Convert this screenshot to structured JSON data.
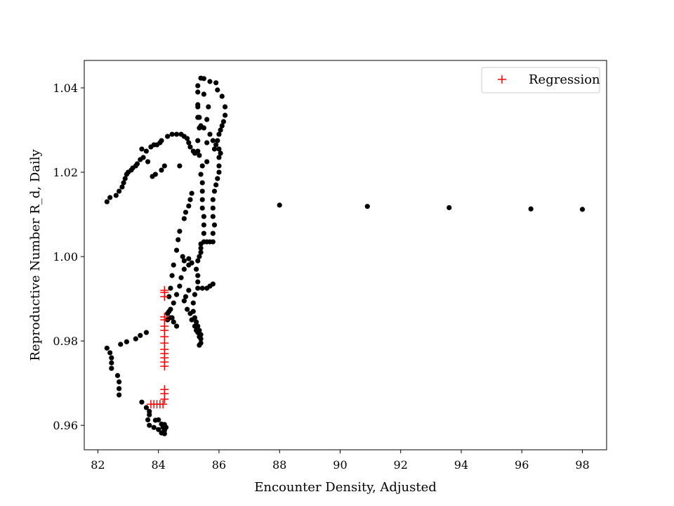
{
  "chart_data": {
    "type": "scatter",
    "title": "",
    "xlabel": "Encounter Density, Adjusted",
    "ylabel": "Reproductive Number R_d, Daily",
    "xlim": [
      81.55,
      98.8
    ],
    "ylim": [
      0.9542,
      1.0465
    ],
    "xticks": [
      82,
      84,
      86,
      88,
      90,
      92,
      94,
      96,
      98
    ],
    "xtick_labels": [
      "82",
      "84",
      "86",
      "88",
      "90",
      "92",
      "94",
      "96",
      "98"
    ],
    "yticks": [
      0.96,
      0.98,
      1.0,
      1.02,
      1.04
    ],
    "ytick_labels": [
      "0.96",
      "0.98",
      "1.00",
      "1.02",
      "1.04"
    ],
    "grid": false,
    "legend": {
      "position": "upper-right",
      "entries": [
        "Regression"
      ]
    },
    "series": [
      {
        "marker": "dot",
        "color": "#000000",
        "points": [
          [
            82.3,
            1.013
          ],
          [
            82.4,
            1.014
          ],
          [
            82.6,
            1.0145
          ],
          [
            82.7,
            1.0155
          ],
          [
            82.8,
            1.0165
          ],
          [
            82.85,
            1.0175
          ],
          [
            82.9,
            1.0185
          ],
          [
            82.95,
            1.0195
          ],
          [
            83.0,
            1.02
          ],
          [
            83.1,
            1.0205
          ],
          [
            83.15,
            1.021
          ],
          [
            83.25,
            1.0215
          ],
          [
            83.3,
            1.022
          ],
          [
            83.4,
            1.023
          ],
          [
            83.5,
            1.0235
          ],
          [
            83.45,
            1.0255
          ],
          [
            83.6,
            1.025
          ],
          [
            83.65,
            1.0225
          ],
          [
            83.75,
            1.026
          ],
          [
            83.85,
            1.0265
          ],
          [
            83.95,
            1.0265
          ],
          [
            84.05,
            1.027
          ],
          [
            84.1,
            1.0275
          ],
          [
            84.3,
            1.0285
          ],
          [
            84.45,
            1.029
          ],
          [
            84.6,
            1.029
          ],
          [
            84.75,
            1.029
          ],
          [
            84.85,
            1.0285
          ],
          [
            84.95,
            1.028
          ],
          [
            85.0,
            1.027
          ],
          [
            85.05,
            1.026
          ],
          [
            85.15,
            1.025
          ],
          [
            85.2,
            1.0245
          ],
          [
            84.7,
            1.0215
          ],
          [
            84.2,
            1.0215
          ],
          [
            84.1,
            1.0205
          ],
          [
            83.9,
            1.0195
          ],
          [
            83.8,
            1.019
          ],
          [
            85.3,
            1.025
          ],
          [
            85.3,
            1.0275
          ],
          [
            85.35,
            1.0305
          ],
          [
            85.3,
            1.033
          ],
          [
            85.3,
            1.036
          ],
          [
            85.3,
            1.039
          ],
          [
            85.3,
            1.0405
          ],
          [
            85.4,
            1.0423
          ],
          [
            85.5,
            1.0422
          ],
          [
            85.7,
            1.0415
          ],
          [
            85.9,
            1.0412
          ],
          [
            85.95,
            1.0395
          ],
          [
            86.1,
            1.038
          ],
          [
            86.2,
            1.0355
          ],
          [
            86.2,
            1.0335
          ],
          [
            86.15,
            1.032
          ],
          [
            86.1,
            1.031
          ],
          [
            86.05,
            1.03
          ],
          [
            86.0,
            1.029
          ],
          [
            85.95,
            1.0275
          ],
          [
            85.9,
            1.0265
          ],
          [
            85.85,
            1.0255
          ],
          [
            86.0,
            1.0255
          ],
          [
            86.05,
            1.0245
          ],
          [
            86.0,
            1.0235
          ],
          [
            86.0,
            1.0215
          ],
          [
            86.0,
            1.02
          ],
          [
            85.95,
            1.0185
          ],
          [
            85.9,
            1.017
          ],
          [
            85.85,
            1.0155
          ],
          [
            85.8,
            1.0135
          ],
          [
            85.8,
            1.0115
          ],
          [
            85.8,
            1.0095
          ],
          [
            85.85,
            1.0075
          ],
          [
            85.8,
            1.0055
          ],
          [
            85.8,
            1.0035
          ],
          [
            85.7,
            1.0035
          ],
          [
            85.6,
            1.0035
          ],
          [
            85.5,
            1.0035
          ],
          [
            85.4,
            1.003
          ],
          [
            85.4,
            1.002
          ],
          [
            85.4,
            1.001
          ],
          [
            85.35,
            1.0
          ],
          [
            85.3,
            0.999
          ],
          [
            85.5,
            1.0055
          ],
          [
            85.5,
            1.0075
          ],
          [
            85.5,
            1.0095
          ],
          [
            85.45,
            1.0115
          ],
          [
            85.45,
            1.0135
          ],
          [
            85.45,
            1.0155
          ],
          [
            85.45,
            1.0175
          ],
          [
            85.4,
            1.0195
          ],
          [
            85.45,
            1.0215
          ],
          [
            85.6,
            1.0225
          ],
          [
            85.35,
            1.024
          ],
          [
            85.6,
            1.027
          ],
          [
            85.8,
            1.0275
          ],
          [
            85.7,
            1.029
          ],
          [
            85.4,
            1.031
          ],
          [
            85.35,
            1.033
          ],
          [
            85.3,
            1.0355
          ],
          [
            85.5,
            1.0385
          ],
          [
            85.65,
            1.0355
          ],
          [
            85.6,
            1.0325
          ],
          [
            85.5,
            1.0305
          ],
          [
            85.0,
            0.998
          ],
          [
            84.85,
            0.997
          ],
          [
            84.75,
            0.995
          ],
          [
            84.7,
            0.993
          ],
          [
            84.6,
            0.991
          ],
          [
            84.5,
            0.989
          ],
          [
            84.4,
            0.9875
          ],
          [
            84.3,
            0.9865
          ],
          [
            84.3,
            0.985
          ],
          [
            84.4,
            0.9855
          ],
          [
            84.5,
            0.9845
          ],
          [
            84.6,
            0.9835
          ],
          [
            84.45,
            0.9855
          ],
          [
            84.35,
            0.987
          ],
          [
            84.35,
            0.9905
          ],
          [
            84.4,
            0.9925
          ],
          [
            84.45,
            0.9955
          ],
          [
            84.5,
            0.998
          ],
          [
            84.6,
            1.0015
          ],
          [
            84.65,
            1.004
          ],
          [
            84.7,
            1.006
          ],
          [
            84.85,
            1.009
          ],
          [
            84.9,
            1.0105
          ],
          [
            85.0,
            1.012
          ],
          [
            85.05,
            1.0135
          ],
          [
            85.1,
            1.015
          ],
          [
            85.0,
            0.992
          ],
          [
            84.9,
            0.9905
          ],
          [
            84.85,
            0.9895
          ],
          [
            84.95,
            0.9875
          ],
          [
            85.05,
            0.9865
          ],
          [
            85.1,
            0.985
          ],
          [
            85.2,
            0.9835
          ],
          [
            85.25,
            0.9825
          ],
          [
            85.3,
            0.982
          ],
          [
            85.35,
            0.981
          ],
          [
            85.4,
            0.9795
          ],
          [
            85.35,
            0.979
          ],
          [
            85.4,
            0.9805
          ],
          [
            85.4,
            0.9815
          ],
          [
            85.35,
            0.9825
          ],
          [
            85.3,
            0.9835
          ],
          [
            85.25,
            0.9845
          ],
          [
            85.2,
            0.9855
          ],
          [
            85.15,
            0.987
          ],
          [
            85.15,
            0.989
          ],
          [
            85.2,
            0.991
          ],
          [
            85.3,
            0.9925
          ],
          [
            85.45,
            0.9925
          ],
          [
            85.6,
            0.9925
          ],
          [
            85.7,
            0.993
          ],
          [
            85.8,
            0.9935
          ],
          [
            85.3,
            0.994
          ],
          [
            85.3,
            0.9955
          ],
          [
            85.25,
            0.997
          ],
          [
            85.1,
            0.9985
          ],
          [
            85.0,
            0.9995
          ],
          [
            84.85,
            0.999
          ],
          [
            84.8,
            1.0
          ],
          [
            83.6,
            0.982
          ],
          [
            83.4,
            0.9813
          ],
          [
            83.25,
            0.9805
          ],
          [
            82.95,
            0.9798
          ],
          [
            82.75,
            0.9792
          ],
          [
            82.3,
            0.9783
          ],
          [
            82.4,
            0.9772
          ],
          [
            82.45,
            0.976
          ],
          [
            82.45,
            0.9748
          ],
          [
            82.45,
            0.9735
          ],
          [
            82.65,
            0.9718
          ],
          [
            82.7,
            0.9703
          ],
          [
            82.7,
            0.9687
          ],
          [
            82.7,
            0.9672
          ],
          [
            83.45,
            0.9655
          ],
          [
            83.6,
            0.9642
          ],
          [
            83.7,
            0.9633
          ],
          [
            83.7,
            0.9625
          ],
          [
            83.65,
            0.9613
          ],
          [
            83.7,
            0.96
          ],
          [
            83.85,
            0.9595
          ],
          [
            83.9,
            0.9612
          ],
          [
            84.0,
            0.9613
          ],
          [
            84.1,
            0.9603
          ],
          [
            84.15,
            0.9595
          ],
          [
            84.2,
            0.9588
          ],
          [
            84.15,
            0.9583
          ],
          [
            84.0,
            0.959
          ],
          [
            84.1,
            0.9582
          ],
          [
            84.2,
            0.958
          ],
          [
            84.25,
            0.9595
          ],
          [
            84.2,
            0.9602
          ],
          [
            88.0,
            1.0122
          ],
          [
            90.9,
            1.0119
          ],
          [
            93.6,
            1.0116
          ],
          [
            96.3,
            1.0113
          ],
          [
            98.0,
            1.0112
          ]
        ]
      },
      {
        "name": "Regression",
        "marker": "plus",
        "color": "#ff0000",
        "points": [
          [
            83.75,
            0.965
          ],
          [
            83.85,
            0.965
          ],
          [
            83.95,
            0.965
          ],
          [
            84.05,
            0.965
          ],
          [
            84.15,
            0.965
          ],
          [
            84.2,
            0.9662
          ],
          [
            84.2,
            0.9675
          ],
          [
            84.2,
            0.9685
          ],
          [
            84.2,
            0.974
          ],
          [
            84.2,
            0.975
          ],
          [
            84.2,
            0.976
          ],
          [
            84.2,
            0.977
          ],
          [
            84.2,
            0.978
          ],
          [
            84.2,
            0.9795
          ],
          [
            84.2,
            0.981
          ],
          [
            84.2,
            0.9825
          ],
          [
            84.2,
            0.9835
          ],
          [
            84.2,
            0.985
          ],
          [
            84.2,
            0.9857
          ],
          [
            84.2,
            0.9905
          ],
          [
            84.2,
            0.9915
          ],
          [
            84.2,
            0.992
          ]
        ]
      }
    ]
  }
}
